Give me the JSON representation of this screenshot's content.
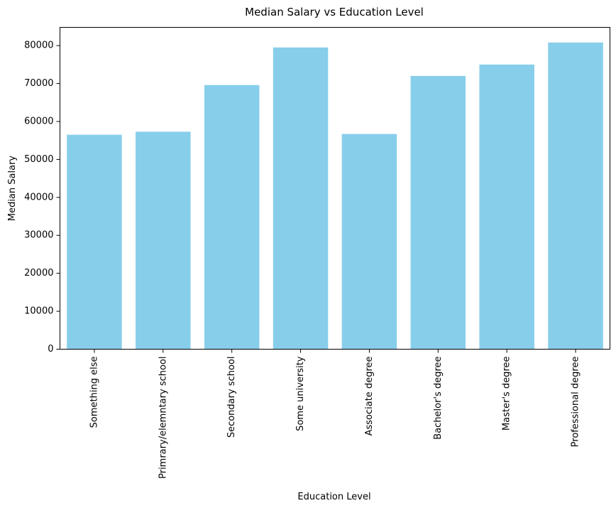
{
  "chart_data": {
    "type": "bar",
    "title": "Median Salary vs Education Level",
    "xlabel": "Education Level",
    "ylabel": "Median Salary",
    "categories": [
      "Something else",
      "Primrary/elemntary school",
      "Secondary school",
      "Some university",
      "Associate degree",
      "Bachelor's degree",
      "Master's degree",
      "Professional degree"
    ],
    "values": [
      56500,
      57300,
      69600,
      79500,
      56700,
      72000,
      75000,
      80800
    ],
    "ylim": [
      0,
      84800
    ],
    "yticks": [
      0,
      10000,
      20000,
      30000,
      40000,
      50000,
      60000,
      70000,
      80000
    ],
    "bar_color": "#87CEEB",
    "grid": false,
    "legend": "none"
  }
}
